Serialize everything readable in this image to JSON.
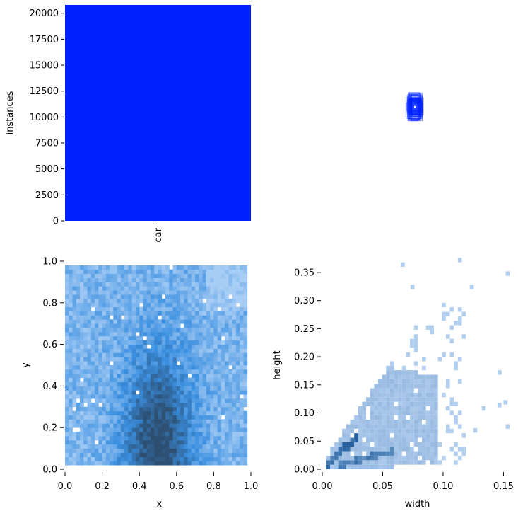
{
  "chart_data": [
    {
      "type": "bar",
      "panel": "top-left",
      "categories": [
        "car"
      ],
      "values": [
        20800
      ],
      "ylabel": "instances",
      "xlabel": "",
      "ylim": [
        0,
        20800
      ],
      "yticks": [
        "0",
        "2500",
        "5000",
        "7500",
        "10000",
        "12500",
        "15000",
        "17500",
        "20000"
      ],
      "bar_color": "#0022ff"
    },
    {
      "type": "scatter",
      "panel": "top-right",
      "description_of_marks": "overlaid bounding-box outlines centered on one point",
      "color": "#0022ff",
      "xlabel": "",
      "ylabel": ""
    },
    {
      "type": "heatmap",
      "panel": "bottom-left",
      "xlabel": "x",
      "ylabel": "y",
      "xlim": [
        0,
        1
      ],
      "ylim": [
        0,
        1
      ],
      "xticks": [
        "0.0",
        "0.2",
        "0.4",
        "0.6",
        "0.8",
        "1.0"
      ],
      "yticks": [
        "0.0",
        "0.2",
        "0.4",
        "0.6",
        "0.8",
        "1.0"
      ],
      "bins": 50,
      "color_low": "#a8cdf5",
      "color_mid": "#3a8fe0",
      "color_high": "#2d4f72",
      "peak_region": {
        "x": 0.5,
        "y": 0.1
      }
    },
    {
      "type": "heatmap",
      "panel": "bottom-right",
      "xlabel": "width",
      "ylabel": "height",
      "xlim": [
        0,
        0.155
      ],
      "ylim": [
        0,
        0.37
      ],
      "xticks": [
        "0.00",
        "0.05",
        "0.10",
        "0.15"
      ],
      "yticks": [
        "0.00",
        "0.05",
        "0.10",
        "0.15",
        "0.20",
        "0.25",
        "0.30",
        "0.35"
      ],
      "color_low": "#b3cff0",
      "color_high": "#1f5d9c",
      "peak_region": {
        "width": 0.02,
        "height": 0.04
      }
    }
  ]
}
